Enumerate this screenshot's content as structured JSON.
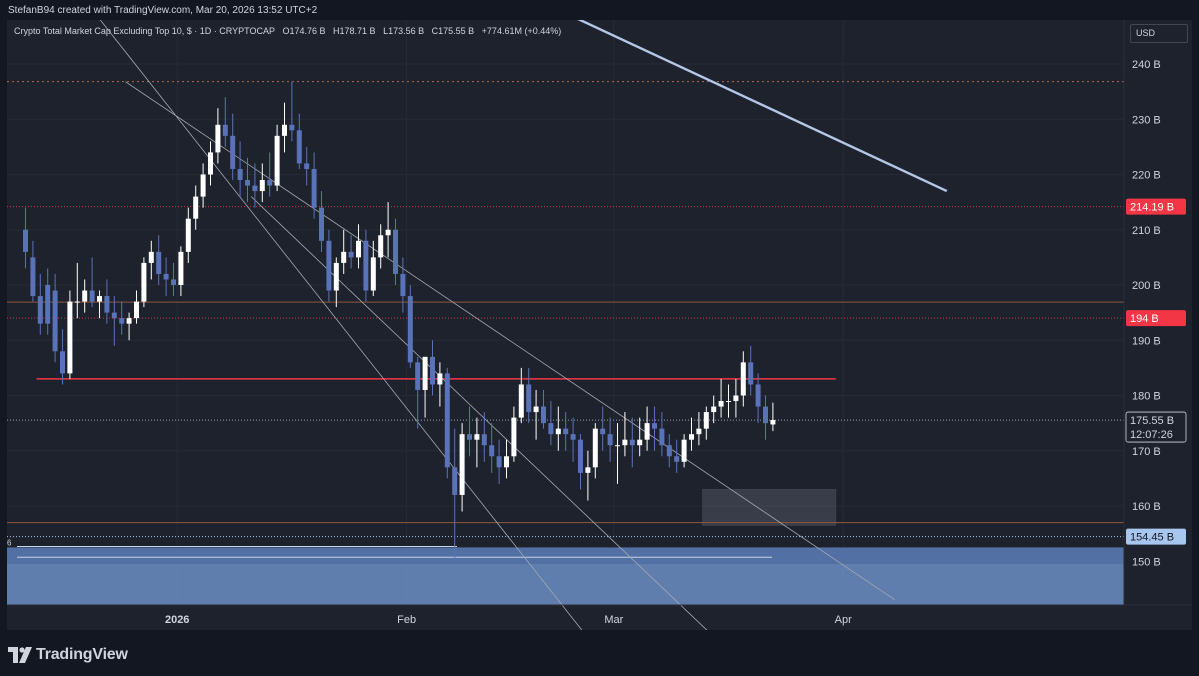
{
  "header": {
    "credit": "StefanB94 created with TradingView.com, Mar 20, 2026 13:52 UTC+2"
  },
  "legend": {
    "symbol": "Crypto Total Market Cap Excluding Top 10, $ · 1D · CRYPTOCAP",
    "open": "O174.76 B",
    "high": "H178.71 B",
    "low": "L173.56 B",
    "close": "C175.55 B",
    "change": "+774.61M (+0.44%)"
  },
  "currency": "USD",
  "footer": {
    "brand": "TradingView"
  },
  "colors": {
    "bull": "#ffffff",
    "bear": "#5a73b8",
    "resistance": "#f23645",
    "zone": "#6c8ec4",
    "price_label": "#d1d4dc",
    "low_label": "#a9c6ef"
  },
  "chart_data": {
    "type": "candlestick",
    "interval": "1D",
    "unit": "B",
    "yticks": [
      150,
      160,
      170,
      180,
      190,
      200,
      210,
      220,
      230,
      240
    ],
    "ylim": [
      140,
      248
    ],
    "xticks": [
      "2026",
      "Feb",
      "Mar",
      "Apr"
    ],
    "price_labels": [
      {
        "text": "214.19 B",
        "value": 214.19,
        "style": "red"
      },
      {
        "text": "194 B",
        "value": 194,
        "style": "red"
      },
      {
        "text": "175.55 B",
        "sub": "12:07:26",
        "value": 175.55,
        "style": "current"
      },
      {
        "text": "154.45 B",
        "value": 154.45,
        "style": "blue"
      }
    ],
    "horizontal_levels": [
      {
        "value": 236.8,
        "style": "dotted-orange"
      },
      {
        "value": 214.19,
        "style": "dotted-red"
      },
      {
        "value": 196.9,
        "style": "solid-orange"
      },
      {
        "value": 194,
        "style": "dotted-red"
      },
      {
        "value": 175.55,
        "style": "dotted-current"
      },
      {
        "value": 157.0,
        "style": "solid-orange"
      },
      {
        "value": 154.45,
        "style": "dotted-blue"
      }
    ],
    "resistance_line": {
      "value": 183.0,
      "from": "2025-12-13",
      "to": "2026-03-31"
    },
    "demand_zone": {
      "from": 149.5,
      "to": 152.5
    },
    "box": {
      "from_date": "2026-03-13",
      "to_date": "2026-03-31",
      "low": 156.5,
      "high": 163.0
    },
    "annotation_text": "6",
    "trendlines": [
      {
        "from": [
          "2025-12-21",
          249.0
        ],
        "to": [
          "2026-02-25",
          137.0
        ]
      },
      {
        "from": [
          "2025-12-25",
          236.8
        ],
        "to": [
          "2026-04-08",
          143.0
        ]
      },
      {
        "from": [
          "2026-01-11",
          216.0
        ],
        "to": [
          "2026-03-14",
          137.0
        ]
      },
      {
        "from": [
          "2026-02-18",
          252.0
        ],
        "to": [
          "2026-04-15",
          217.0
        ]
      }
    ],
    "candles": [
      {
        "d": "2025-12-11",
        "o": 210.0,
        "h": 214.0,
        "l": 203.0,
        "c": 206.0
      },
      {
        "d": "2025-12-12",
        "o": 205.0,
        "h": 208.0,
        "l": 197.0,
        "c": 198.0
      },
      {
        "d": "2025-12-13",
        "o": 198.0,
        "h": 202.0,
        "l": 191.0,
        "c": 193.0
      },
      {
        "d": "2025-12-14",
        "o": 200.0,
        "h": 203.0,
        "l": 191.0,
        "c": 193.0
      },
      {
        "d": "2025-12-15",
        "o": 199.0,
        "h": 202.0,
        "l": 186.0,
        "c": 188.0
      },
      {
        "d": "2025-12-16",
        "o": 188.0,
        "h": 192.0,
        "l": 182.0,
        "c": 184.0
      },
      {
        "d": "2025-12-17",
        "o": 184.0,
        "h": 199.0,
        "l": 183.0,
        "c": 197.0
      },
      {
        "d": "2025-12-18",
        "o": 197.0,
        "h": 204.0,
        "l": 194.0,
        "c": 197.0
      },
      {
        "d": "2025-12-19",
        "o": 197.0,
        "h": 201.0,
        "l": 195.0,
        "c": 199.0
      },
      {
        "d": "2025-12-20",
        "o": 199.0,
        "h": 205.0,
        "l": 196.0,
        "c": 197.0
      },
      {
        "d": "2025-12-21",
        "o": 197.0,
        "h": 199.0,
        "l": 194.0,
        "c": 198.0
      },
      {
        "d": "2025-12-22",
        "o": 198.0,
        "h": 201.0,
        "l": 193.0,
        "c": 195.0
      },
      {
        "d": "2025-12-23",
        "o": 195.0,
        "h": 198.0,
        "l": 189.0,
        "c": 194.0
      },
      {
        "d": "2025-12-24",
        "o": 194.0,
        "h": 197.0,
        "l": 191.0,
        "c": 193.0
      },
      {
        "d": "2025-12-25",
        "o": 193.0,
        "h": 195.0,
        "l": 190.0,
        "c": 194.0
      },
      {
        "d": "2025-12-26",
        "o": 194.0,
        "h": 199.0,
        "l": 193.0,
        "c": 197.0
      },
      {
        "d": "2025-12-27",
        "o": 197.0,
        "h": 205.0,
        "l": 196.0,
        "c": 204.0
      },
      {
        "d": "2025-12-28",
        "o": 204.0,
        "h": 208.0,
        "l": 201.0,
        "c": 206.0
      },
      {
        "d": "2025-12-29",
        "o": 206.0,
        "h": 209.0,
        "l": 200.0,
        "c": 202.0
      },
      {
        "d": "2025-12-30",
        "o": 202.0,
        "h": 205.0,
        "l": 198.0,
        "c": 201.0
      },
      {
        "d": "2025-12-31",
        "o": 201.0,
        "h": 204.0,
        "l": 198.0,
        "c": 200.0
      },
      {
        "d": "2026-01-01",
        "o": 200.0,
        "h": 207.0,
        "l": 198.0,
        "c": 206.0
      },
      {
        "d": "2026-01-02",
        "o": 206.0,
        "h": 214.0,
        "l": 204.0,
        "c": 212.0
      },
      {
        "d": "2026-01-03",
        "o": 212.0,
        "h": 218.0,
        "l": 210.0,
        "c": 216.0
      },
      {
        "d": "2026-01-04",
        "o": 216.0,
        "h": 222.0,
        "l": 214.0,
        "c": 220.0
      },
      {
        "d": "2026-01-05",
        "o": 220.0,
        "h": 226.0,
        "l": 218.0,
        "c": 224.0
      },
      {
        "d": "2026-01-06",
        "o": 224.0,
        "h": 232.0,
        "l": 222.0,
        "c": 229.0
      },
      {
        "d": "2026-01-07",
        "o": 229.0,
        "h": 234.0,
        "l": 225.0,
        "c": 227.0
      },
      {
        "d": "2026-01-08",
        "o": 227.0,
        "h": 231.0,
        "l": 219.0,
        "c": 221.0
      },
      {
        "d": "2026-01-09",
        "o": 221.0,
        "h": 226.0,
        "l": 216.0,
        "c": 219.0
      },
      {
        "d": "2026-01-10",
        "o": 219.0,
        "h": 223.0,
        "l": 215.0,
        "c": 218.0
      },
      {
        "d": "2026-01-11",
        "o": 218.0,
        "h": 222.0,
        "l": 214.0,
        "c": 217.0
      },
      {
        "d": "2026-01-12",
        "o": 217.0,
        "h": 222.0,
        "l": 215.0,
        "c": 219.0
      },
      {
        "d": "2026-01-13",
        "o": 219.0,
        "h": 224.0,
        "l": 216.0,
        "c": 218.0
      },
      {
        "d": "2026-01-14",
        "o": 218.0,
        "h": 229.0,
        "l": 217.0,
        "c": 227.0
      },
      {
        "d": "2026-01-15",
        "o": 227.0,
        "h": 233.0,
        "l": 224.0,
        "c": 229.0
      },
      {
        "d": "2026-01-16",
        "o": 229.0,
        "h": 236.8,
        "l": 226.0,
        "c": 228.0
      },
      {
        "d": "2026-01-17",
        "o": 228.0,
        "h": 231.0,
        "l": 221.0,
        "c": 222.0
      },
      {
        "d": "2026-01-18",
        "o": 222.0,
        "h": 225.0,
        "l": 218.0,
        "c": 221.0
      },
      {
        "d": "2026-01-19",
        "o": 221.0,
        "h": 224.0,
        "l": 212.0,
        "c": 214.0
      },
      {
        "d": "2026-01-20",
        "o": 214.0,
        "h": 217.0,
        "l": 206.0,
        "c": 208.0
      },
      {
        "d": "2026-01-21",
        "o": 208.0,
        "h": 210.0,
        "l": 197.0,
        "c": 199.0
      },
      {
        "d": "2026-01-22",
        "o": 199.0,
        "h": 205.0,
        "l": 196.0,
        "c": 204.0
      },
      {
        "d": "2026-01-23",
        "o": 204.0,
        "h": 210.0,
        "l": 202.0,
        "c": 206.0
      },
      {
        "d": "2026-01-24",
        "o": 206.0,
        "h": 209.0,
        "l": 203.0,
        "c": 205.0
      },
      {
        "d": "2026-01-25",
        "o": 205.0,
        "h": 211.0,
        "l": 203.0,
        "c": 208.0
      },
      {
        "d": "2026-01-26",
        "o": 208.0,
        "h": 210.0,
        "l": 197.0,
        "c": 199.0
      },
      {
        "d": "2026-01-27",
        "o": 199.0,
        "h": 208.0,
        "l": 198.0,
        "c": 205.0
      },
      {
        "d": "2026-01-28",
        "o": 205.0,
        "h": 211.0,
        "l": 203.0,
        "c": 209.0
      },
      {
        "d": "2026-01-29",
        "o": 209.0,
        "h": 215.0,
        "l": 205.0,
        "c": 210.0
      },
      {
        "d": "2026-01-30",
        "o": 210.0,
        "h": 212.0,
        "l": 200.0,
        "c": 202.0
      },
      {
        "d": "2026-01-31",
        "o": 202.0,
        "h": 205.0,
        "l": 195.0,
        "c": 198.0
      },
      {
        "d": "2026-02-01",
        "o": 198.0,
        "h": 200.0,
        "l": 185.0,
        "c": 186.0
      },
      {
        "d": "2026-02-02",
        "o": 186.0,
        "h": 187.0,
        "l": 174.0,
        "c": 181.0
      },
      {
        "d": "2026-02-03",
        "o": 181.0,
        "h": 186.0,
        "l": 176.0,
        "c": 187.0
      },
      {
        "d": "2026-02-04",
        "o": 187.0,
        "h": 190.0,
        "l": 180.0,
        "c": 182.0
      },
      {
        "d": "2026-02-05",
        "o": 182.0,
        "h": 186.0,
        "l": 178.0,
        "c": 184.0
      },
      {
        "d": "2026-02-06",
        "o": 184.0,
        "h": 185.0,
        "l": 165.0,
        "c": 167.0
      },
      {
        "d": "2026-02-07",
        "o": 167.0,
        "h": 174.0,
        "l": 150.0,
        "c": 162.0
      },
      {
        "d": "2026-02-08",
        "o": 162.0,
        "h": 175.0,
        "l": 159.0,
        "c": 173.0
      },
      {
        "d": "2026-02-09",
        "o": 173.0,
        "h": 178.0,
        "l": 169.0,
        "c": 172.0
      },
      {
        "d": "2026-02-10",
        "o": 172.0,
        "h": 176.0,
        "l": 167.0,
        "c": 173.0
      },
      {
        "d": "2026-02-11",
        "o": 173.0,
        "h": 177.0,
        "l": 168.0,
        "c": 171.0
      },
      {
        "d": "2026-02-12",
        "o": 171.0,
        "h": 175.0,
        "l": 166.0,
        "c": 169.0
      },
      {
        "d": "2026-02-13",
        "o": 169.0,
        "h": 172.0,
        "l": 164.0,
        "c": 167.0
      },
      {
        "d": "2026-02-14",
        "o": 167.0,
        "h": 172.0,
        "l": 165.0,
        "c": 169.0
      },
      {
        "d": "2026-02-15",
        "o": 169.0,
        "h": 178.0,
        "l": 168.0,
        "c": 176.0
      },
      {
        "d": "2026-02-16",
        "o": 176.0,
        "h": 185.0,
        "l": 175.0,
        "c": 182.0
      },
      {
        "d": "2026-02-17",
        "o": 182.0,
        "h": 185.0,
        "l": 175.0,
        "c": 177.0
      },
      {
        "d": "2026-02-18",
        "o": 177.0,
        "h": 181.0,
        "l": 172.0,
        "c": 178.0
      },
      {
        "d": "2026-02-19",
        "o": 178.0,
        "h": 181.0,
        "l": 174.0,
        "c": 175.0
      },
      {
        "d": "2026-02-20",
        "o": 175.0,
        "h": 179.0,
        "l": 171.0,
        "c": 173.0
      },
      {
        "d": "2026-02-21",
        "o": 173.0,
        "h": 178.0,
        "l": 170.0,
        "c": 174.0
      },
      {
        "d": "2026-02-22",
        "o": 174.0,
        "h": 177.0,
        "l": 170.0,
        "c": 173.0
      },
      {
        "d": "2026-02-23",
        "o": 173.0,
        "h": 176.0,
        "l": 168.0,
        "c": 172.0
      },
      {
        "d": "2026-02-24",
        "o": 172.0,
        "h": 173.0,
        "l": 163.0,
        "c": 166.0
      },
      {
        "d": "2026-02-25",
        "o": 166.0,
        "h": 170.0,
        "l": 161.0,
        "c": 167.0
      },
      {
        "d": "2026-02-26",
        "o": 167.0,
        "h": 175.0,
        "l": 165.0,
        "c": 174.0
      },
      {
        "d": "2026-02-27",
        "o": 174.0,
        "h": 178.0,
        "l": 170.0,
        "c": 173.0
      },
      {
        "d": "2026-02-28",
        "o": 173.0,
        "h": 176.0,
        "l": 168.0,
        "c": 171.0
      },
      {
        "d": "2026-03-01",
        "o": 171.0,
        "h": 175.0,
        "l": 164.0,
        "c": 171.0
      },
      {
        "d": "2026-03-02",
        "o": 171.0,
        "h": 177.0,
        "l": 169.0,
        "c": 172.0
      },
      {
        "d": "2026-03-03",
        "o": 172.0,
        "h": 176.0,
        "l": 167.0,
        "c": 171.0
      },
      {
        "d": "2026-03-04",
        "o": 171.0,
        "h": 176.0,
        "l": 169.0,
        "c": 172.0
      },
      {
        "d": "2026-03-05",
        "o": 172.0,
        "h": 178.0,
        "l": 170.0,
        "c": 175.0
      },
      {
        "d": "2026-03-06",
        "o": 175.0,
        "h": 178.0,
        "l": 170.0,
        "c": 174.0
      },
      {
        "d": "2026-03-07",
        "o": 174.0,
        "h": 177.0,
        "l": 169.0,
        "c": 171.0
      },
      {
        "d": "2026-03-08",
        "o": 171.0,
        "h": 173.0,
        "l": 167.0,
        "c": 169.0
      },
      {
        "d": "2026-03-09",
        "o": 169.0,
        "h": 172.0,
        "l": 166.0,
        "c": 168.0
      },
      {
        "d": "2026-03-10",
        "o": 168.0,
        "h": 173.0,
        "l": 167.0,
        "c": 172.0
      },
      {
        "d": "2026-03-11",
        "o": 172.0,
        "h": 176.0,
        "l": 170.0,
        "c": 173.0
      },
      {
        "d": "2026-03-12",
        "o": 173.0,
        "h": 177.0,
        "l": 171.0,
        "c": 174.0
      },
      {
        "d": "2026-03-13",
        "o": 174.0,
        "h": 178.0,
        "l": 172.0,
        "c": 177.0
      },
      {
        "d": "2026-03-14",
        "o": 177.0,
        "h": 180.0,
        "l": 175.0,
        "c": 178.0
      },
      {
        "d": "2026-03-15",
        "o": 178.0,
        "h": 183.0,
        "l": 176.0,
        "c": 179.0
      },
      {
        "d": "2026-03-16",
        "o": 179.0,
        "h": 182.0,
        "l": 176.0,
        "c": 179.0
      },
      {
        "d": "2026-03-17",
        "o": 179.0,
        "h": 183.0,
        "l": 176.0,
        "c": 180.0
      },
      {
        "d": "2026-03-18",
        "o": 180.0,
        "h": 188.0,
        "l": 178.0,
        "c": 186.0
      },
      {
        "d": "2026-03-19",
        "o": 186.0,
        "h": 189.0,
        "l": 180.0,
        "c": 182.0
      },
      {
        "d": "2026-03-20",
        "o": 182.0,
        "h": 184.0,
        "l": 175.0,
        "c": 178.0
      },
      {
        "d": "2026-03-21",
        "o": 178.0,
        "h": 180.0,
        "l": 172.0,
        "c": 175.0
      },
      {
        "d": "2026-03-22",
        "o": 174.76,
        "h": 178.71,
        "l": 173.56,
        "c": 175.55
      }
    ]
  }
}
